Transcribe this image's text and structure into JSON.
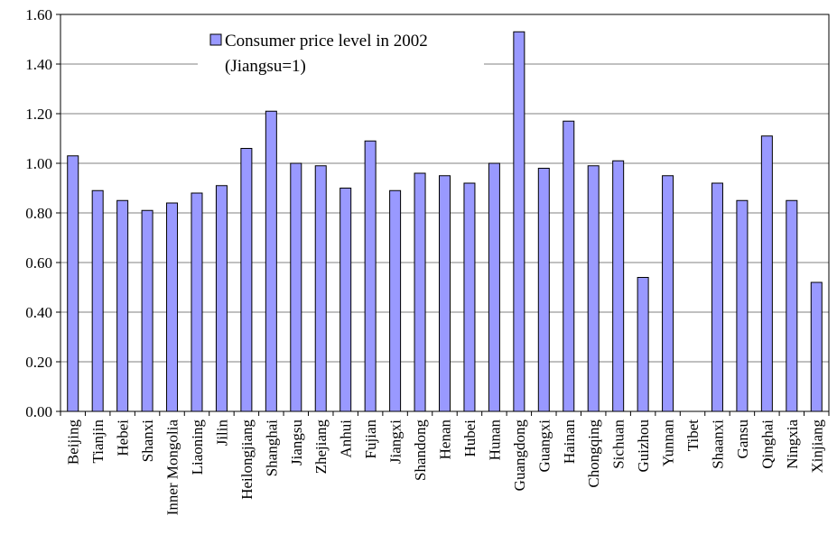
{
  "chart_data": {
    "type": "bar",
    "title": "",
    "xlabel": "",
    "ylabel": "",
    "ylim": [
      0,
      1.6
    ],
    "yticks": [
      "0.00",
      "0.20",
      "0.40",
      "0.60",
      "0.80",
      "1.00",
      "1.20",
      "1.40",
      "1.60"
    ],
    "grid": true,
    "legend_position": "top-center",
    "bar_color": "#9999ff",
    "bar_stroke": "#000000",
    "categories": [
      "Beijing",
      "Tianjin",
      "Hebei",
      "Shanxi",
      "Inner Mongolia",
      "Liaoning",
      "Jilin",
      "Heilongjiang",
      "Shanghai",
      "Jiangsu",
      "Zhejiang",
      "Anhui",
      "Fujian",
      "Jiangxi",
      "Shandong",
      "Henan",
      "Hubei",
      "Hunan",
      "Guangdong",
      "Guangxi",
      "Hainan",
      "Chongqing",
      "Sichuan",
      "Guizhou",
      "Yunnan",
      "Tibet",
      "Shaanxi",
      "Gansu",
      "Qinghai",
      "Ningxia",
      "Xinjiang"
    ],
    "series": [
      {
        "name": "Consumer price level in 2002 (Jiangsu=1)",
        "values": [
          1.03,
          0.89,
          0.85,
          0.81,
          0.84,
          0.88,
          0.91,
          1.06,
          1.21,
          1.0,
          0.99,
          0.9,
          1.09,
          0.89,
          0.96,
          0.95,
          0.92,
          1.0,
          1.53,
          0.98,
          1.17,
          0.99,
          1.01,
          0.54,
          0.95,
          null,
          0.92,
          0.85,
          1.11,
          0.85,
          0.52
        ]
      }
    ],
    "legend": {
      "line1": "Consumer price level in 2002",
      "line2": "(Jiangsu=1)"
    }
  }
}
